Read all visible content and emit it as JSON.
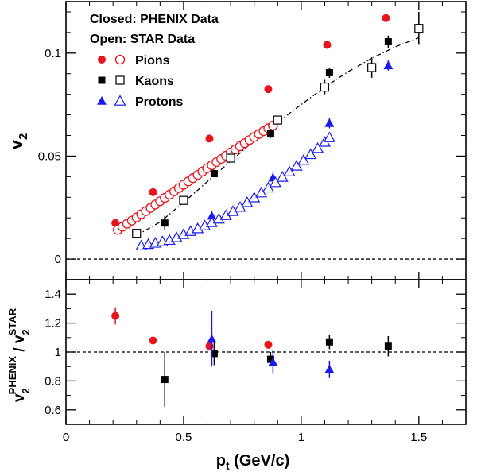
{
  "chart_data": {
    "type": "scatter",
    "xlim": [
      0,
      1.7
    ],
    "x_ticks": [
      "0",
      "0.5",
      "1",
      "1.5"
    ],
    "xlabel_main": "p",
    "xlabel_sub": "t",
    "xlabel_unit": " (GeV/c)",
    "colors": {
      "pions": "#e8141b",
      "kaons": "#000000",
      "protons": "#1a1aee"
    },
    "top_panel": {
      "ylim": [
        -0.01,
        0.125
      ],
      "y_ticks": [
        {
          "value": 0,
          "label": "0"
        },
        {
          "value": 0.05,
          "label": "0.05"
        },
        {
          "value": 0.1,
          "label": "0.1"
        }
      ],
      "ylabel_main": "v",
      "ylabel_sub": "2",
      "legend": {
        "line1": "Closed: PHENIX Data",
        "line2": "Open: STAR Data",
        "entries": [
          "Pions",
          "Kaons",
          "Protons"
        ]
      },
      "series": [
        {
          "name": "Pions",
          "source": "PHENIX",
          "marker": "circle-filled",
          "color_key": "pions",
          "points": [
            [
              0.21,
              0.0175,
              0.001
            ],
            [
              0.37,
              0.0325,
              0.0012
            ],
            [
              0.61,
              0.0585,
              0.0012
            ],
            [
              0.86,
              0.0825,
              0.0012
            ],
            [
              1.11,
              0.104,
              0.0013
            ],
            [
              1.36,
              0.117,
              0.0015
            ]
          ]
        },
        {
          "name": "Pions",
          "source": "STAR",
          "marker": "circle-open",
          "color_key": "pions",
          "points": [
            [
              0.22,
              0.0142
            ],
            [
              0.24,
              0.0157
            ],
            [
              0.26,
              0.0172
            ],
            [
              0.28,
              0.0187
            ],
            [
              0.3,
              0.0202
            ],
            [
              0.32,
              0.0218
            ],
            [
              0.34,
              0.0233
            ],
            [
              0.36,
              0.0249
            ],
            [
              0.38,
              0.0265
            ],
            [
              0.4,
              0.0281
            ],
            [
              0.42,
              0.0297
            ],
            [
              0.44,
              0.0313
            ],
            [
              0.46,
              0.0329
            ],
            [
              0.48,
              0.0345
            ],
            [
              0.5,
              0.0361
            ],
            [
              0.52,
              0.0377
            ],
            [
              0.54,
              0.0393
            ],
            [
              0.56,
              0.0409
            ],
            [
              0.58,
              0.0425
            ],
            [
              0.6,
              0.0441
            ],
            [
              0.62,
              0.0456
            ],
            [
              0.64,
              0.0471
            ],
            [
              0.66,
              0.0486
            ],
            [
              0.68,
              0.0502
            ],
            [
              0.7,
              0.0518
            ],
            [
              0.72,
              0.0533
            ],
            [
              0.74,
              0.0548
            ],
            [
              0.76,
              0.0563
            ],
            [
              0.78,
              0.0578
            ],
            [
              0.8,
              0.0593
            ],
            [
              0.82,
              0.0607
            ],
            [
              0.84,
              0.0621
            ],
            [
              0.86,
              0.0635
            ],
            [
              0.88,
              0.0648
            ]
          ]
        },
        {
          "name": "Kaons",
          "source": "PHENIX",
          "marker": "square-filled",
          "color_key": "kaons",
          "points": [
            [
              0.42,
              0.0175,
              0.0035
            ],
            [
              0.63,
              0.0415,
              0.0018
            ],
            [
              0.87,
              0.061,
              0.0022
            ],
            [
              1.12,
              0.0905,
              0.0025
            ],
            [
              1.37,
              0.1055,
              0.003
            ]
          ]
        },
        {
          "name": "Kaons",
          "source": "STAR",
          "marker": "square-open",
          "color_key": "kaons",
          "points": [
            [
              0.3,
              0.0125,
              0.0012
            ],
            [
              0.5,
              0.0285,
              0.0012
            ],
            [
              0.7,
              0.049,
              0.0014
            ],
            [
              0.9,
              0.0675,
              0.0018
            ],
            [
              1.1,
              0.0835,
              0.0035
            ],
            [
              1.3,
              0.093,
              0.005
            ],
            [
              1.5,
              0.112,
              0.008
            ]
          ]
        },
        {
          "name": "Protons",
          "source": "PHENIX",
          "marker": "triangle-filled",
          "color_key": "protons",
          "points": [
            [
              0.62,
              0.021,
              0.0025
            ],
            [
              0.88,
              0.0395,
              0.0025
            ],
            [
              1.12,
              0.066,
              0.0025
            ],
            [
              1.37,
              0.094,
              0.0025
            ]
          ]
        },
        {
          "name": "Protons",
          "source": "STAR",
          "marker": "triangle-open",
          "color_key": "protons",
          "points": [
            [
              0.32,
              0.0065
            ],
            [
              0.35,
              0.0072
            ],
            [
              0.38,
              0.0078
            ],
            [
              0.41,
              0.0085
            ],
            [
              0.44,
              0.0092
            ],
            [
              0.47,
              0.0105
            ],
            [
              0.5,
              0.012
            ],
            [
              0.53,
              0.0135
            ],
            [
              0.56,
              0.0148
            ],
            [
              0.59,
              0.0162
            ],
            [
              0.62,
              0.0178
            ],
            [
              0.65,
              0.0195
            ],
            [
              0.68,
              0.0212
            ],
            [
              0.71,
              0.0232
            ],
            [
              0.74,
              0.0252
            ],
            [
              0.77,
              0.0275
            ],
            [
              0.8,
              0.0298
            ],
            [
              0.83,
              0.0322
            ],
            [
              0.86,
              0.0346
            ],
            [
              0.89,
              0.0372
            ],
            [
              0.92,
              0.0398
            ],
            [
              0.95,
              0.0424
            ],
            [
              0.98,
              0.0452
            ],
            [
              1.01,
              0.048
            ],
            [
              1.04,
              0.0508
            ],
            [
              1.07,
              0.0538
            ],
            [
              1.1,
              0.0568
            ],
            [
              1.12,
              0.059
            ]
          ]
        }
      ],
      "fit_curves": [
        {
          "color_key": "pions",
          "points": [
            [
              0.22,
              0.0142
            ],
            [
              0.4,
              0.0281
            ],
            [
              0.6,
              0.0441
            ],
            [
              0.8,
              0.0593
            ],
            [
              0.88,
              0.0648
            ]
          ]
        },
        {
          "color_key": "kaons",
          "points": [
            [
              0.3,
              0.0115
            ],
            [
              0.4,
              0.018
            ],
            [
              0.5,
              0.0275
            ],
            [
              0.6,
              0.0375
            ],
            [
              0.7,
              0.0475
            ],
            [
              0.8,
              0.0575
            ],
            [
              0.9,
              0.0665
            ],
            [
              1.0,
              0.075
            ],
            [
              1.1,
              0.0835
            ],
            [
              1.2,
              0.091
            ],
            [
              1.3,
              0.0975
            ],
            [
              1.4,
              0.103
            ],
            [
              1.5,
              0.1075
            ]
          ]
        },
        {
          "color_key": "protons",
          "points": [
            [
              0.32,
              0.0055
            ],
            [
              0.45,
              0.0085
            ],
            [
              0.55,
              0.0135
            ],
            [
              0.65,
              0.0195
            ],
            [
              0.75,
              0.0255
            ],
            [
              0.85,
              0.0335
            ],
            [
              0.95,
              0.0425
            ],
            [
              1.05,
              0.052
            ],
            [
              1.12,
              0.059
            ]
          ]
        }
      ]
    },
    "bottom_panel": {
      "ylim": [
        0.5,
        1.5
      ],
      "y_ticks": [
        {
          "value": 0.6,
          "label": "0.6"
        },
        {
          "value": 0.8,
          "label": "0.8"
        },
        {
          "value": 1.0,
          "label": "1"
        },
        {
          "value": 1.2,
          "label": "1.2"
        },
        {
          "value": 1.4,
          "label": "1.4"
        }
      ],
      "ylabel_v": "v",
      "ylabel_sub1": "2",
      "ylabel_sup1": "PHENIX",
      "ylabel_slash": " / v",
      "ylabel_sub2": "2",
      "ylabel_sup2": "STAR",
      "series": [
        {
          "name": "Pions",
          "color_key": "pions",
          "points": [
            [
              0.21,
              1.25,
              0.06
            ],
            [
              0.37,
              1.08,
              0.01
            ],
            [
              0.61,
              1.04,
              0.01
            ],
            [
              0.86,
              1.05,
              0.01
            ]
          ]
        },
        {
          "name": "Kaons",
          "color_key": "kaons",
          "points": [
            [
              0.42,
              0.81,
              0.19
            ],
            [
              0.63,
              0.99,
              0.08
            ],
            [
              0.87,
              0.95,
              0.05
            ],
            [
              1.12,
              1.07,
              0.05
            ],
            [
              1.37,
              1.04,
              0.07
            ]
          ]
        },
        {
          "name": "Protons",
          "color_key": "protons",
          "points": [
            [
              0.62,
              1.09,
              0.19
            ],
            [
              0.88,
              0.93,
              0.08
            ],
            [
              1.12,
              0.88,
              0.06
            ]
          ]
        }
      ]
    }
  }
}
